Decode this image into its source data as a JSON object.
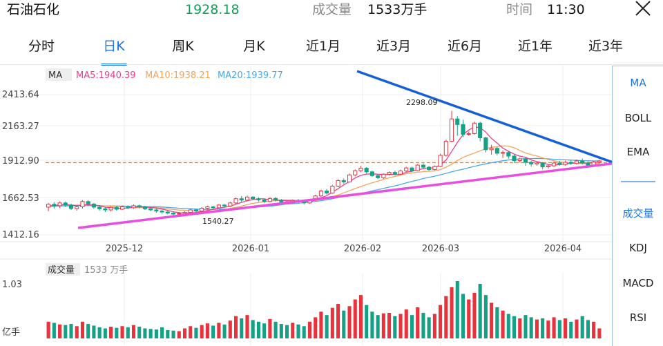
{
  "header": {
    "stock_name": "石油石化",
    "price": "1928.18",
    "volume_label": "成交量",
    "volume_value": "1533万手",
    "time_label": "时间",
    "time_value": "11:30"
  },
  "tabs": [
    "分时",
    "日K",
    "周K",
    "月K",
    "近1月",
    "近3月",
    "近6月",
    "近1年",
    "近3年"
  ],
  "active_tab": "日K",
  "side_indicators": {
    "top": [
      "MA",
      "BOLL",
      "EMA"
    ],
    "bottom": [
      "成交量",
      "KDJ",
      "MACD",
      "RSI"
    ],
    "active_top": "MA",
    "active_bottom": "成交量"
  },
  "legend": {
    "ma": "MA",
    "ma5": "MA5:1940.39",
    "ma10": "MA10:1938.21",
    "ma20": "MA20:1939.77"
  },
  "volume_panel": {
    "label": "成交量",
    "value": "1533 万手",
    "top_tick": "1.03",
    "unit": "亿手"
  },
  "colors": {
    "up": "#e8323c",
    "down": "#16a085",
    "ma5": "#e83e8c",
    "ma10": "#f5a35b",
    "ma20": "#4aa8e8",
    "accent": "#1a73e8",
    "trend_down": "#1560d8",
    "trend_up": "#e84fe0",
    "ref_line": "#f08a24"
  },
  "chart_data": {
    "type": "candlestick",
    "y_ticks": [
      "2413.64",
      "2163.27",
      "1912.90",
      "1662.53",
      "1412.16"
    ],
    "ylim": [
      1412.16,
      2413.64
    ],
    "x_ticks": [
      "2025-12",
      "2026-01",
      "2026-02",
      "2026-03",
      "2026-04"
    ],
    "annotations": {
      "high": "2298.09",
      "low": "1540.27"
    },
    "reference_value": 1928.18,
    "candles": [
      [
        1610,
        1630,
        1580,
        1640
      ],
      [
        1630,
        1620,
        1600,
        1645
      ],
      [
        1620,
        1640,
        1605,
        1650
      ],
      [
        1640,
        1625,
        1610,
        1650
      ],
      [
        1625,
        1600,
        1590,
        1635
      ],
      [
        1600,
        1612,
        1585,
        1625
      ],
      [
        1612,
        1650,
        1600,
        1660
      ],
      [
        1650,
        1632,
        1618,
        1660
      ],
      [
        1632,
        1610,
        1598,
        1640
      ],
      [
        1610,
        1598,
        1585,
        1620
      ],
      [
        1598,
        1590,
        1575,
        1608
      ],
      [
        1590,
        1608,
        1580,
        1615
      ],
      [
        1608,
        1595,
        1585,
        1618
      ],
      [
        1595,
        1612,
        1588,
        1620
      ],
      [
        1612,
        1605,
        1595,
        1622
      ],
      [
        1605,
        1620,
        1598,
        1630
      ],
      [
        1620,
        1612,
        1600,
        1628
      ],
      [
        1612,
        1598,
        1590,
        1620
      ],
      [
        1598,
        1590,
        1580,
        1605
      ],
      [
        1590,
        1582,
        1570,
        1598
      ],
      [
        1582,
        1575,
        1565,
        1590
      ],
      [
        1575,
        1568,
        1558,
        1585
      ],
      [
        1568,
        1560,
        1548,
        1578
      ],
      [
        1560,
        1565,
        1541,
        1575
      ],
      [
        1565,
        1572,
        1555,
        1580
      ],
      [
        1572,
        1590,
        1562,
        1598
      ],
      [
        1590,
        1582,
        1572,
        1598
      ],
      [
        1582,
        1602,
        1575,
        1610
      ],
      [
        1602,
        1612,
        1595,
        1620
      ],
      [
        1612,
        1605,
        1598,
        1620
      ],
      [
        1605,
        1625,
        1600,
        1632
      ],
      [
        1625,
        1618,
        1608,
        1632
      ],
      [
        1618,
        1640,
        1612,
        1648
      ],
      [
        1640,
        1670,
        1632,
        1678
      ],
      [
        1670,
        1660,
        1645,
        1690
      ],
      [
        1660,
        1682,
        1652,
        1692
      ],
      [
        1682,
        1670,
        1660,
        1688
      ],
      [
        1670,
        1662,
        1650,
        1680
      ],
      [
        1662,
        1650,
        1640,
        1672
      ],
      [
        1650,
        1672,
        1645,
        1680
      ],
      [
        1672,
        1660,
        1650,
        1682
      ],
      [
        1660,
        1648,
        1638,
        1668
      ],
      [
        1648,
        1640,
        1630,
        1655
      ],
      [
        1640,
        1658,
        1635,
        1665
      ],
      [
        1658,
        1650,
        1640,
        1668
      ],
      [
        1650,
        1640,
        1628,
        1660
      ],
      [
        1640,
        1660,
        1635,
        1668
      ],
      [
        1660,
        1690,
        1655,
        1698
      ],
      [
        1690,
        1725,
        1682,
        1735
      ],
      [
        1725,
        1710,
        1700,
        1740
      ],
      [
        1710,
        1760,
        1705,
        1770
      ],
      [
        1760,
        1800,
        1752,
        1808
      ],
      [
        1800,
        1790,
        1775,
        1815
      ],
      [
        1790,
        1840,
        1785,
        1850
      ],
      [
        1840,
        1870,
        1830,
        1880
      ],
      [
        1870,
        1888,
        1860,
        1905
      ],
      [
        1888,
        1862,
        1850,
        1895
      ],
      [
        1862,
        1835,
        1825,
        1870
      ],
      [
        1835,
        1820,
        1810,
        1845
      ],
      [
        1820,
        1845,
        1812,
        1852
      ],
      [
        1845,
        1858,
        1835,
        1865
      ],
      [
        1858,
        1845,
        1838,
        1870
      ],
      [
        1845,
        1868,
        1840,
        1878
      ],
      [
        1868,
        1890,
        1860,
        1898
      ],
      [
        1890,
        1870,
        1862,
        1900
      ],
      [
        1870,
        1910,
        1865,
        1918
      ],
      [
        1910,
        1895,
        1885,
        1922
      ],
      [
        1895,
        1878,
        1868,
        1905
      ],
      [
        1878,
        1900,
        1872,
        1908
      ],
      [
        1900,
        1980,
        1895,
        1992
      ],
      [
        1980,
        2080,
        1972,
        2092
      ],
      [
        2080,
        2240,
        2072,
        2298
      ],
      [
        2240,
        2200,
        2120,
        2260
      ],
      [
        2200,
        2130,
        2110,
        2235
      ],
      [
        2130,
        2135,
        2120,
        2150
      ],
      [
        2135,
        2210,
        2128,
        2222
      ],
      [
        2210,
        2105,
        2080,
        2220
      ],
      [
        2105,
        2020,
        2000,
        2112
      ],
      [
        2020,
        2030,
        1985,
        2055
      ],
      [
        2030,
        1995,
        1980,
        2040
      ],
      [
        1995,
        2000,
        1960,
        2015
      ],
      [
        2000,
        1975,
        1955,
        2008
      ],
      [
        1975,
        1942,
        1925,
        1985
      ],
      [
        1942,
        1955,
        1930,
        1962
      ],
      [
        1955,
        1930,
        1905,
        1965
      ],
      [
        1930,
        1918,
        1900,
        1940
      ],
      [
        1918,
        1925,
        1905,
        1935
      ],
      [
        1925,
        1898,
        1880,
        1932
      ],
      [
        1898,
        1905,
        1885,
        1915
      ],
      [
        1905,
        1925,
        1898,
        1935
      ],
      [
        1925,
        1915,
        1905,
        1940
      ],
      [
        1915,
        1930,
        1908,
        1942
      ],
      [
        1930,
        1922,
        1912,
        1948
      ],
      [
        1922,
        1940,
        1915,
        1950
      ],
      [
        1940,
        1925,
        1915,
        1958
      ],
      [
        1925,
        1910,
        1900,
        1935
      ],
      [
        1910,
        1932,
        1905,
        1940
      ],
      [
        1932,
        1940,
        1920,
        1948
      ]
    ],
    "ma5": [
      1618,
      1622,
      1626,
      1628,
      1624,
      1622,
      1625,
      1627,
      1624,
      1620,
      1609,
      1606,
      1602,
      1601,
      1604,
      1608,
      1612,
      1610,
      1607,
      1603,
      1596,
      1587,
      1577,
      1570,
      1568,
      1568,
      1572,
      1578,
      1586,
      1594,
      1603,
      1609,
      1617,
      1630,
      1644,
      1655,
      1664,
      1669,
      1669,
      1662,
      1663,
      1658,
      1656,
      1656,
      1652,
      1651,
      1650,
      1660,
      1677,
      1692,
      1717,
      1742,
      1769,
      1792,
      1818,
      1837,
      1846,
      1848,
      1845,
      1844,
      1844,
      1842,
      1843,
      1859,
      1866,
      1877,
      1885,
      1888,
      1891,
      1913,
      1946,
      2008,
      2072,
      2128,
      2161,
      2183,
      2178,
      2146,
      2101,
      2068,
      2031,
      2009,
      1989,
      1974,
      1966,
      1947,
      1935,
      1925,
      1915,
      1910,
      1914,
      1919,
      1922,
      1927,
      1926,
      1925,
      1930,
      1932
    ],
    "ma10": [
      1618,
      1620,
      1622,
      1624,
      1625,
      1624,
      1624,
      1624,
      1624,
      1622,
      1619,
      1617,
      1615,
      1614,
      1612,
      1608,
      1608,
      1606,
      1606,
      1606,
      1603,
      1598,
      1593,
      1589,
      1588,
      1586,
      1583,
      1579,
      1578,
      1580,
      1586,
      1594,
      1601,
      1608,
      1617,
      1628,
      1637,
      1643,
      1649,
      1653,
      1656,
      1660,
      1662,
      1660,
      1658,
      1657,
      1656,
      1658,
      1663,
      1672,
      1684,
      1697,
      1712,
      1727,
      1743,
      1757,
      1771,
      1783,
      1795,
      1808,
      1820,
      1829,
      1839,
      1849,
      1854,
      1859,
      1863,
      1866,
      1868,
      1878,
      1895,
      1917,
      1943,
      1965,
      1982,
      1996,
      2012,
      2028,
      2037,
      2042,
      2047,
      2046,
      2034,
      2015,
      1997,
      1985,
      1975,
      1962,
      1950,
      1941,
      1933,
      1928,
      1925,
      1922,
      1921,
      1920,
      1922,
      1924
    ],
    "ma20": [
      1614,
      1616,
      1618,
      1619,
      1620,
      1620,
      1621,
      1621,
      1621,
      1620,
      1619,
      1619,
      1618,
      1618,
      1617,
      1616,
      1615,
      1614,
      1613,
      1613,
      1611,
      1608,
      1605,
      1602,
      1600,
      1598,
      1596,
      1594,
      1593,
      1593,
      1595,
      1596,
      1597,
      1599,
      1602,
      1605,
      1608,
      1611,
      1614,
      1617,
      1621,
      1627,
      1632,
      1634,
      1637,
      1642,
      1646,
      1651,
      1656,
      1662,
      1670,
      1678,
      1687,
      1694,
      1701,
      1708,
      1716,
      1726,
      1735,
      1744,
      1753,
      1762,
      1772,
      1783,
      1793,
      1803,
      1814,
      1823,
      1831,
      1841,
      1851,
      1862,
      1872,
      1881,
      1891,
      1901,
      1911,
      1919,
      1927,
      1934,
      1941,
      1947,
      1951,
      1954,
      1956,
      1957,
      1958,
      1957,
      1955,
      1952,
      1950,
      1948,
      1946,
      1944,
      1942,
      1941,
      1940,
      1940
    ],
    "volume_max": 1.03,
    "volumes": [
      0.3,
      0.28,
      0.25,
      0.24,
      0.26,
      0.22,
      0.3,
      0.26,
      0.23,
      0.2,
      0.18,
      0.21,
      0.19,
      0.22,
      0.2,
      0.24,
      0.21,
      0.18,
      0.17,
      0.16,
      0.2,
      0.15,
      0.14,
      0.13,
      0.18,
      0.22,
      0.19,
      0.24,
      0.27,
      0.23,
      0.28,
      0.25,
      0.32,
      0.4,
      0.36,
      0.42,
      0.33,
      0.3,
      0.27,
      0.35,
      0.3,
      0.26,
      0.24,
      0.28,
      0.25,
      0.22,
      0.3,
      0.38,
      0.48,
      0.42,
      0.55,
      0.62,
      0.5,
      0.58,
      0.7,
      0.78,
      0.6,
      0.48,
      0.42,
      0.45,
      0.46,
      0.4,
      0.44,
      0.52,
      0.42,
      0.56,
      0.46,
      0.38,
      0.44,
      0.6,
      0.76,
      0.92,
      1.03,
      0.8,
      0.7,
      0.82,
      0.98,
      0.78,
      0.64,
      0.56,
      0.5,
      0.44,
      0.4,
      0.36,
      0.42,
      0.38,
      0.34,
      0.36,
      0.32,
      0.38,
      0.33,
      0.36,
      0.3,
      0.34,
      0.4,
      0.33,
      0.3,
      0.18
    ]
  }
}
